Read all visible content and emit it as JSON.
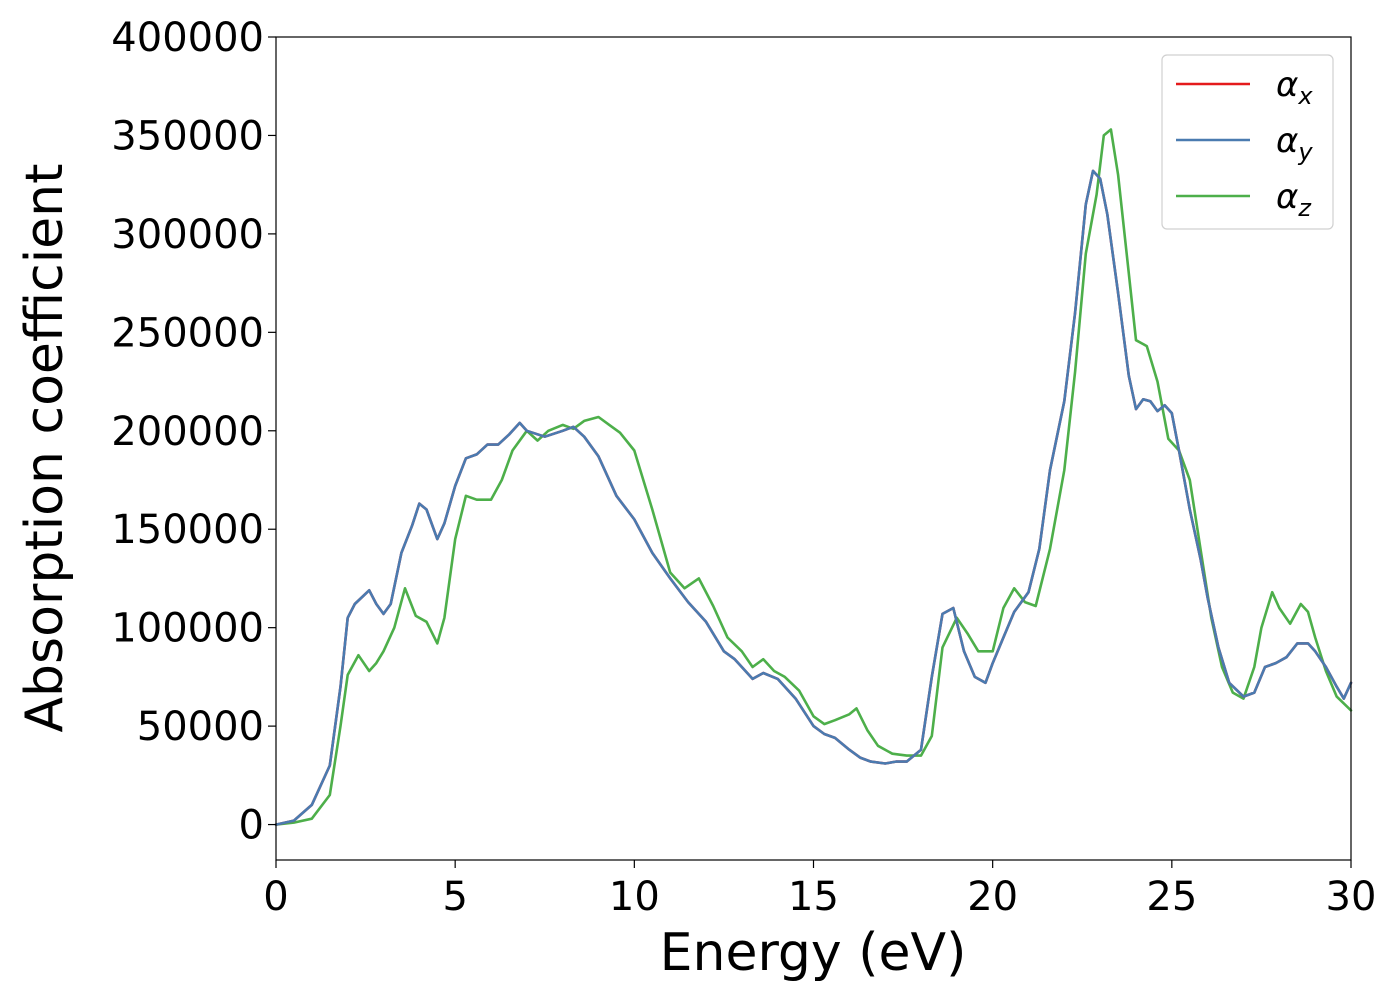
{
  "chart_data": {
    "type": "line",
    "xlabel": "Energy (eV)",
    "ylabel": "Absorption coefficient",
    "xlim": [
      0,
      30
    ],
    "ylim": [
      -18000,
      400000
    ],
    "xticks": [
      0,
      5,
      10,
      15,
      20,
      25,
      30
    ],
    "xtick_labels": [
      "0",
      "5",
      "10",
      "15",
      "20",
      "25",
      "30"
    ],
    "yticks": [
      0,
      50000,
      100000,
      150000,
      200000,
      250000,
      300000,
      350000,
      400000
    ],
    "ytick_labels": [
      "0",
      "50000",
      "100000",
      "150000",
      "200000",
      "250000",
      "300000",
      "350000",
      "400000"
    ],
    "grid": false,
    "legend_position": "top-right",
    "series": [
      {
        "name": "α",
        "subscript": "x",
        "color": "#e41a1c",
        "x": [
          0,
          0.5,
          1.0,
          1.5,
          1.8,
          2.0,
          2.2,
          2.6,
          2.8,
          3.0,
          3.2,
          3.5,
          3.8,
          4.0,
          4.2,
          4.5,
          4.7,
          5.0,
          5.3,
          5.6,
          5.9,
          6.2,
          6.5,
          6.8,
          7.0,
          7.5,
          8.0,
          8.3,
          8.6,
          9.0,
          9.5,
          10.0,
          10.5,
          11.0,
          11.5,
          12.0,
          12.5,
          12.8,
          13.0,
          13.3,
          13.6,
          14.0,
          14.5,
          15.0,
          15.3,
          15.6,
          16.0,
          16.3,
          16.6,
          17.0,
          17.3,
          17.6,
          18.0,
          18.3,
          18.6,
          18.9,
          19.2,
          19.5,
          19.8,
          20.0,
          20.3,
          20.6,
          21.0,
          21.3,
          21.6,
          22.0,
          22.3,
          22.6,
          22.8,
          23.0,
          23.2,
          23.5,
          23.8,
          24.0,
          24.2,
          24.4,
          24.6,
          24.8,
          25.0,
          25.2,
          25.5,
          25.8,
          26.0,
          26.3,
          26.6,
          27.0,
          27.3,
          27.6,
          27.9,
          28.2,
          28.5,
          28.8,
          29.0,
          29.3,
          29.6,
          29.8,
          30.0
        ],
        "y": [
          0,
          2000,
          10000,
          30000,
          70000,
          105000,
          112000,
          119000,
          112000,
          107000,
          112000,
          138000,
          152000,
          163000,
          160000,
          145000,
          153000,
          172000,
          186000,
          188000,
          193000,
          193000,
          198000,
          204000,
          200000,
          197000,
          200000,
          202000,
          197000,
          187000,
          167000,
          155000,
          138000,
          125000,
          113000,
          103000,
          88000,
          84000,
          80000,
          74000,
          77000,
          74000,
          64000,
          50000,
          46000,
          44000,
          38000,
          34000,
          32000,
          31000,
          32000,
          32000,
          38000,
          75000,
          107000,
          110000,
          88000,
          75000,
          72000,
          82000,
          95000,
          108000,
          118000,
          140000,
          180000,
          215000,
          260000,
          315000,
          332000,
          328000,
          310000,
          270000,
          228000,
          211000,
          216000,
          215000,
          210000,
          213000,
          209000,
          190000,
          160000,
          135000,
          115000,
          90000,
          72000,
          65000,
          67000,
          80000,
          82000,
          85000,
          92000,
          92000,
          88000,
          80000,
          70000,
          64000,
          72000
        ]
      },
      {
        "name": "α",
        "subscript": "y",
        "color": "#4a7bb0",
        "x": [
          0,
          0.5,
          1.0,
          1.5,
          1.8,
          2.0,
          2.2,
          2.6,
          2.8,
          3.0,
          3.2,
          3.5,
          3.8,
          4.0,
          4.2,
          4.5,
          4.7,
          5.0,
          5.3,
          5.6,
          5.9,
          6.2,
          6.5,
          6.8,
          7.0,
          7.5,
          8.0,
          8.3,
          8.6,
          9.0,
          9.5,
          10.0,
          10.5,
          11.0,
          11.5,
          12.0,
          12.5,
          12.8,
          13.0,
          13.3,
          13.6,
          14.0,
          14.5,
          15.0,
          15.3,
          15.6,
          16.0,
          16.3,
          16.6,
          17.0,
          17.3,
          17.6,
          18.0,
          18.3,
          18.6,
          18.9,
          19.2,
          19.5,
          19.8,
          20.0,
          20.3,
          20.6,
          21.0,
          21.3,
          21.6,
          22.0,
          22.3,
          22.6,
          22.8,
          23.0,
          23.2,
          23.5,
          23.8,
          24.0,
          24.2,
          24.4,
          24.6,
          24.8,
          25.0,
          25.2,
          25.5,
          25.8,
          26.0,
          26.3,
          26.6,
          27.0,
          27.3,
          27.6,
          27.9,
          28.2,
          28.5,
          28.8,
          29.0,
          29.3,
          29.6,
          29.8,
          30.0
        ],
        "y": [
          0,
          2000,
          10000,
          30000,
          70000,
          105000,
          112000,
          119000,
          112000,
          107000,
          112000,
          138000,
          152000,
          163000,
          160000,
          145000,
          153000,
          172000,
          186000,
          188000,
          193000,
          193000,
          198000,
          204000,
          200000,
          197000,
          200000,
          202000,
          197000,
          187000,
          167000,
          155000,
          138000,
          125000,
          113000,
          103000,
          88000,
          84000,
          80000,
          74000,
          77000,
          74000,
          64000,
          50000,
          46000,
          44000,
          38000,
          34000,
          32000,
          31000,
          32000,
          32000,
          38000,
          75000,
          107000,
          110000,
          88000,
          75000,
          72000,
          82000,
          95000,
          108000,
          118000,
          140000,
          180000,
          215000,
          260000,
          315000,
          332000,
          328000,
          310000,
          270000,
          228000,
          211000,
          216000,
          215000,
          210000,
          213000,
          209000,
          190000,
          160000,
          135000,
          115000,
          90000,
          72000,
          65000,
          67000,
          80000,
          82000,
          85000,
          92000,
          92000,
          88000,
          80000,
          70000,
          64000,
          72000
        ]
      },
      {
        "name": "α",
        "subscript": "z",
        "color": "#4daf4a",
        "x": [
          0,
          0.5,
          1.0,
          1.5,
          1.8,
          2.0,
          2.3,
          2.6,
          2.8,
          3.0,
          3.3,
          3.6,
          3.9,
          4.2,
          4.5,
          4.7,
          5.0,
          5.3,
          5.6,
          6.0,
          6.3,
          6.6,
          7.0,
          7.3,
          7.6,
          8.0,
          8.3,
          8.6,
          9.0,
          9.3,
          9.6,
          10.0,
          10.5,
          11.0,
          11.4,
          11.8,
          12.2,
          12.6,
          13.0,
          13.3,
          13.6,
          13.9,
          14.2,
          14.6,
          15.0,
          15.3,
          15.6,
          16.0,
          16.2,
          16.5,
          16.8,
          17.2,
          17.6,
          18.0,
          18.3,
          18.6,
          19.0,
          19.3,
          19.6,
          20.0,
          20.3,
          20.6,
          20.9,
          21.2,
          21.6,
          22.0,
          22.3,
          22.6,
          22.9,
          23.1,
          23.3,
          23.5,
          23.8,
          24.0,
          24.3,
          24.6,
          24.9,
          25.2,
          25.5,
          25.8,
          26.1,
          26.4,
          26.7,
          27.0,
          27.3,
          27.5,
          27.8,
          28.0,
          28.3,
          28.6,
          28.8,
          29.0,
          29.3,
          29.6,
          30.0
        ],
        "y": [
          0,
          1000,
          3000,
          15000,
          50000,
          76000,
          86000,
          78000,
          82000,
          88000,
          100000,
          120000,
          106000,
          103000,
          92000,
          105000,
          145000,
          167000,
          165000,
          165000,
          175000,
          190000,
          200000,
          195000,
          200000,
          203000,
          201000,
          205000,
          207000,
          203000,
          199000,
          190000,
          160000,
          128000,
          120000,
          125000,
          111000,
          95000,
          88000,
          80000,
          84000,
          78000,
          75000,
          68000,
          55000,
          51000,
          53000,
          56000,
          59000,
          48000,
          40000,
          36000,
          35000,
          35000,
          45000,
          90000,
          105000,
          97000,
          88000,
          88000,
          110000,
          120000,
          113000,
          111000,
          140000,
          180000,
          230000,
          290000,
          320000,
          350000,
          353000,
          330000,
          280000,
          246000,
          243000,
          225000,
          196000,
          190000,
          175000,
          140000,
          105000,
          80000,
          67000,
          64000,
          80000,
          100000,
          118000,
          110000,
          102000,
          112000,
          108000,
          95000,
          78000,
          65000,
          58000
        ]
      }
    ]
  }
}
